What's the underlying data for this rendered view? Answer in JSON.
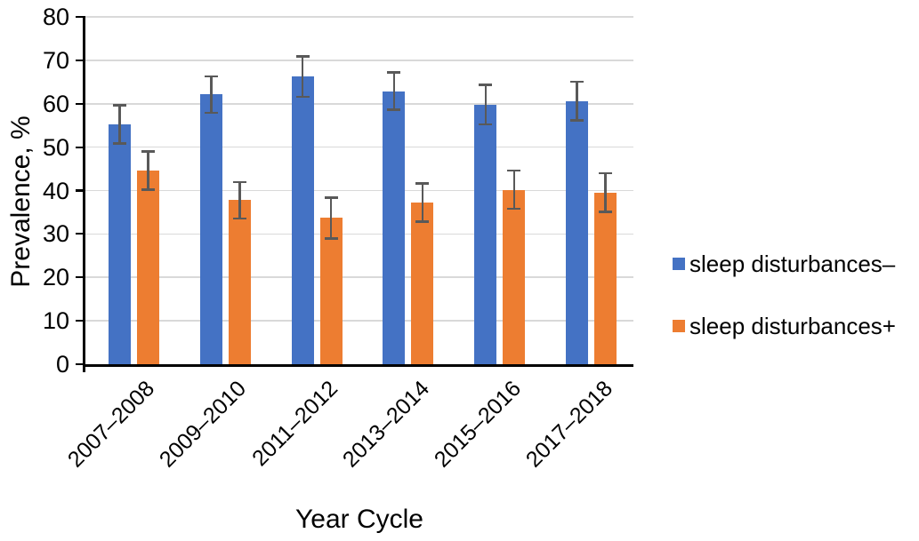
{
  "chart_data": {
    "type": "bar",
    "title": "",
    "xlabel": "Year Cycle",
    "ylabel": "Prevalence, %",
    "ylim": [
      0,
      80
    ],
    "ytick_step": 10,
    "ytick_labels": [
      "0",
      "10",
      "20",
      "30",
      "40",
      "50",
      "60",
      "70",
      "80"
    ],
    "grid": true,
    "legend_position": "right",
    "categories": [
      "2007–2008",
      "2009–2010",
      "2011–2012",
      "2013–2014",
      "2015–2016",
      "2017–2018"
    ],
    "series": [
      {
        "name": "sleep disturbances–",
        "color": "#4472C4",
        "values": [
          55.3,
          62.1,
          66.3,
          62.8,
          59.8,
          60.6
        ],
        "err_low": [
          50.9,
          57.9,
          61.6,
          58.6,
          55.3,
          56.2
        ],
        "err_high": [
          59.7,
          66.3,
          70.9,
          67.2,
          64.4,
          65.1
        ]
      },
      {
        "name": "sleep disturbances+",
        "color": "#ED7D31",
        "values": [
          44.7,
          37.9,
          33.7,
          37.2,
          40.2,
          39.4
        ],
        "err_low": [
          40.2,
          33.6,
          29.0,
          32.9,
          35.8,
          35.1
        ],
        "err_high": [
          49.0,
          42.0,
          38.4,
          41.6,
          44.6,
          44.0
        ]
      }
    ],
    "error_bar_color": "#595959",
    "gridline_color": "#D9D9D9",
    "axis_color": "#000000"
  }
}
